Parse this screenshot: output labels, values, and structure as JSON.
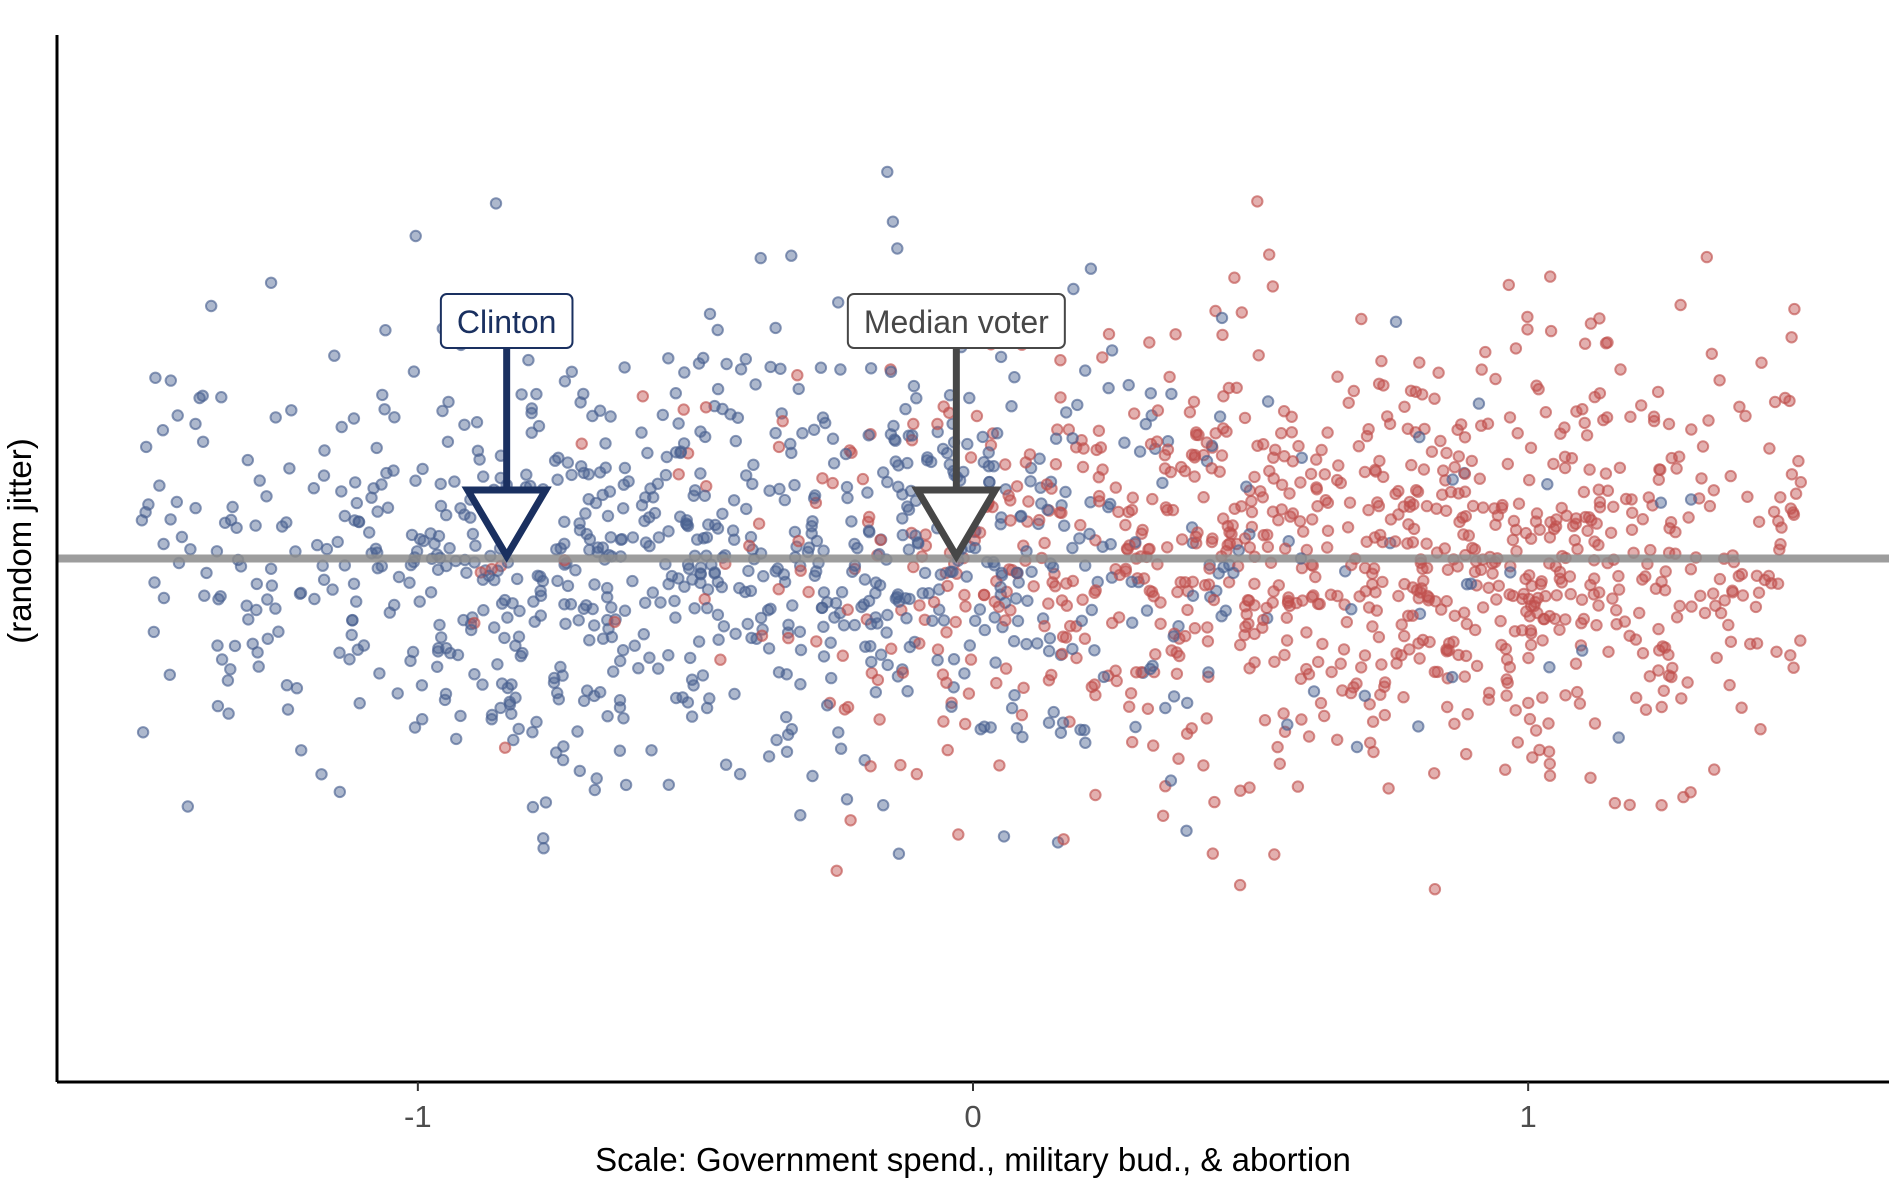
{
  "chart_data": {
    "type": "scatter",
    "title": "",
    "xlabel": "Scale: Government spend., military bud., & abortion",
    "ylabel": "(random jitter)",
    "xlim": [
      -1.65,
      1.65
    ],
    "ylim": [
      -0.95,
      0.95
    ],
    "x_ticks": [
      -1,
      0,
      1
    ],
    "x_tick_labels": [
      "-1",
      "0",
      "1"
    ],
    "grid": false,
    "legend": "none",
    "reference_line": {
      "y": 0,
      "color": "#8c8c8c"
    },
    "series": [
      {
        "color": "#4a6190",
        "opacity": 0.45,
        "generation": {
          "count": 900,
          "x_min": -1.5,
          "x_max": 1.5,
          "x_center": -0.5,
          "x_sd": 0.55,
          "y_sd": 0.2,
          "seed": 11
        }
      },
      {
        "color": "#c0504d",
        "opacity": 0.45,
        "generation": {
          "count": 950,
          "x_min": -1.5,
          "x_max": 1.5,
          "x_center": 0.75,
          "x_sd": 0.55,
          "y_sd": 0.2,
          "seed": 23
        }
      }
    ],
    "annotations": [
      {
        "label": "Clinton",
        "x": -0.84,
        "color": "#1a3060",
        "text_color": "#1a3060"
      },
      {
        "label": "Median voter",
        "x": -0.03,
        "color": "#474747",
        "text_color": "#474747"
      }
    ]
  }
}
